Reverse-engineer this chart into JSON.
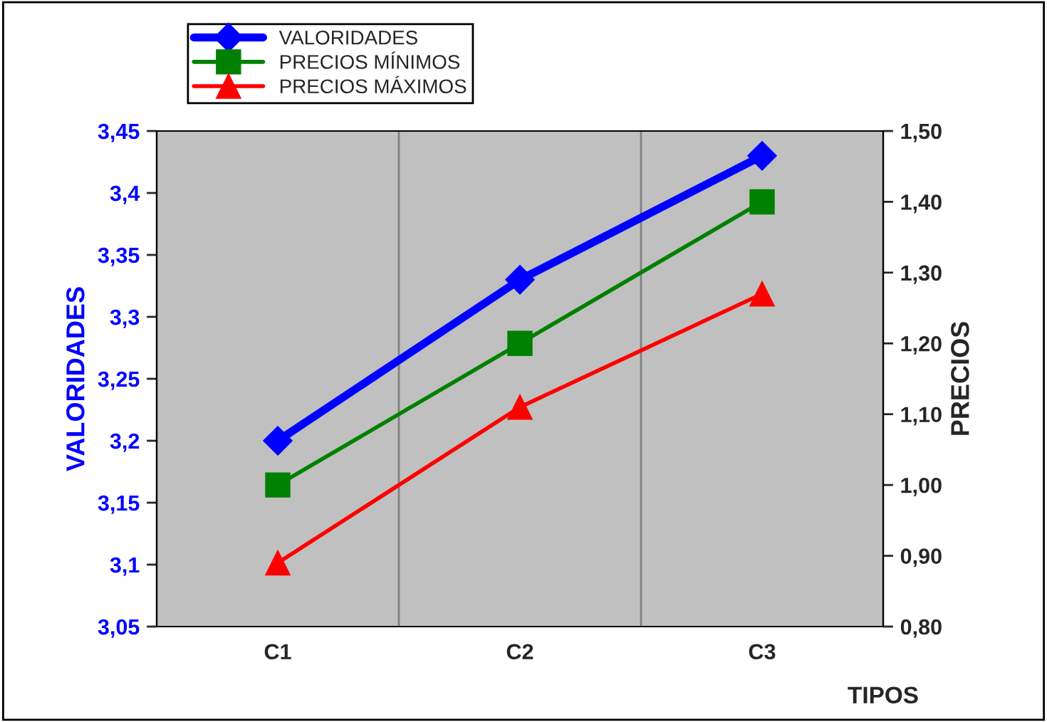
{
  "chart_data": {
    "type": "line",
    "categories": [
      "C1",
      "C2",
      "C3"
    ],
    "xlabel": "TIPOS",
    "ylabel": "VALORIDADES",
    "y2label": "PRECIOS",
    "series": [
      {
        "name": "VALORIDADES",
        "color": "#0000ff",
        "values": [
          3.2,
          3.33,
          3.43
        ],
        "marker": "diamond"
      },
      {
        "name": "PRECIOS MÍNIMOS",
        "color": "#008000",
        "values": [
          1.0,
          1.2,
          1.4
        ],
        "marker": "square",
        "axis": "y2"
      },
      {
        "name": "PRECIOS MÁXIMOS",
        "color": "#ff0000",
        "values": [
          0.89,
          1.11,
          1.27
        ],
        "marker": "triangle",
        "axis": "y2"
      }
    ],
    "ylim": [
      3.05,
      3.45
    ],
    "yticks": [
      {
        "value": 3.05,
        "label": "3,05"
      },
      {
        "value": 3.1,
        "label": "3,1"
      },
      {
        "value": 3.15,
        "label": "3,15"
      },
      {
        "value": 3.2,
        "label": "3,2"
      },
      {
        "value": 3.25,
        "label": "3,25"
      },
      {
        "value": 3.3,
        "label": "3,3"
      },
      {
        "value": 3.35,
        "label": "3,35"
      },
      {
        "value": 3.4,
        "label": "3,4"
      },
      {
        "value": 3.45,
        "label": "3,45"
      }
    ],
    "y2lim": [
      0.8,
      1.5
    ],
    "y2ticks": [
      {
        "value": 0.8,
        "label": "0,80"
      },
      {
        "value": 0.9,
        "label": "0,90"
      },
      {
        "value": 1.0,
        "label": "1,00"
      },
      {
        "value": 1.1,
        "label": "1,10"
      },
      {
        "value": 1.2,
        "label": "1,20"
      },
      {
        "value": 1.3,
        "label": "1,30"
      },
      {
        "value": 1.4,
        "label": "1,40"
      },
      {
        "value": 1.5,
        "label": "1,50"
      }
    ],
    "grid": "x",
    "legend": "top left"
  }
}
